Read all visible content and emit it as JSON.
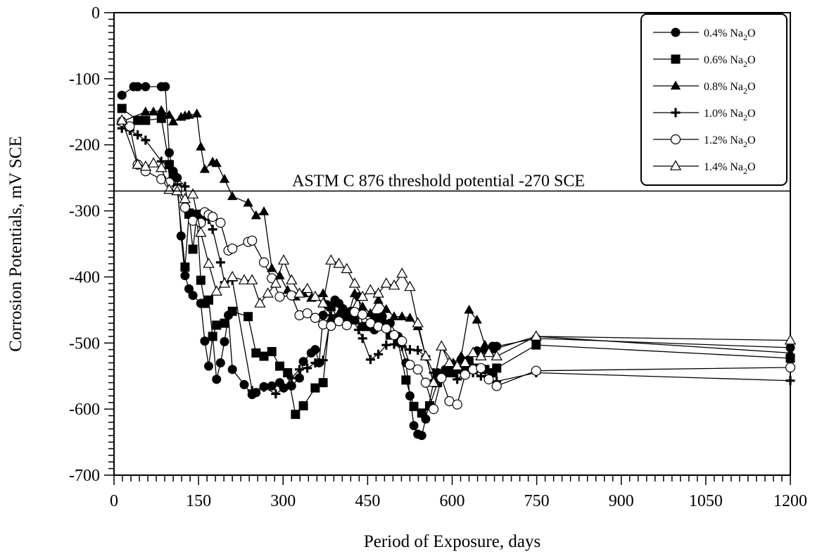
{
  "chart_data": {
    "type": "scatter",
    "title": "",
    "xlabel": "Period of Exposure, days",
    "ylabel": "Corrosion Potentials, mV SCE",
    "xlim": [
      0,
      1200
    ],
    "ylim": [
      -700,
      0
    ],
    "xticks": [
      0,
      150,
      300,
      450,
      600,
      750,
      900,
      1050,
      1200
    ],
    "yticks": [
      0,
      -100,
      -200,
      -300,
      -400,
      -500,
      -600,
      -700
    ],
    "grid": false,
    "legend_position": "top-right",
    "threshold": {
      "y": -270,
      "label": "ASTM C 876 threshold potential -270 SCE"
    },
    "series": [
      {
        "name": "0.4% Na2O",
        "label_main": "0.4% Na",
        "label_sub": "2",
        "label_end": "O",
        "marker": "circle-filled",
        "x": [
          14,
          35,
          42,
          56,
          84,
          91,
          98,
          105,
          112,
          119,
          126,
          133,
          140,
          154,
          161,
          168,
          175,
          182,
          189,
          196,
          203,
          210,
          231,
          245,
          252,
          266,
          280,
          294,
          301,
          315,
          329,
          336,
          350,
          357,
          364,
          371,
          378,
          392,
          399,
          406,
          420,
          434,
          441,
          455,
          462,
          476,
          490,
          504,
          518,
          525,
          532,
          539,
          546,
          553,
          567,
          574,
          588,
          602,
          616,
          630,
          644,
          658,
          672,
          679,
          749,
          1200
        ],
        "y": [
          -125,
          -112,
          -112,
          -112,
          -112,
          -112,
          -212,
          -240,
          -250,
          -338,
          -398,
          -418,
          -428,
          -440,
          -497,
          -535,
          -490,
          -555,
          -530,
          -498,
          -458,
          -540,
          -563,
          -578,
          -575,
          -566,
          -565,
          -560,
          -568,
          -565,
          -553,
          -528,
          -515,
          -510,
          -530,
          -458,
          -442,
          -435,
          -440,
          -448,
          -452,
          -430,
          -475,
          -470,
          -480,
          -460,
          -470,
          -490,
          -530,
          -580,
          -625,
          -638,
          -640,
          -615,
          -560,
          -545,
          -540,
          -540,
          -525,
          -525,
          -512,
          -510,
          -505,
          -505,
          -493,
          -507
        ]
      },
      {
        "name": "0.6% Na2O",
        "label_main": "0.6% Na",
        "label_sub": "2",
        "label_end": "O",
        "marker": "square-filled",
        "x": [
          14,
          42,
          56,
          84,
          98,
          105,
          112,
          126,
          133,
          140,
          147,
          154,
          161,
          168,
          175,
          182,
          196,
          210,
          238,
          252,
          266,
          280,
          294,
          308,
          322,
          336,
          357,
          371,
          385,
          399,
          413,
          427,
          448,
          462,
          476,
          490,
          504,
          518,
          532,
          546,
          560,
          574,
          588,
          602,
          616,
          630,
          644,
          658,
          672,
          679,
          749,
          1200
        ],
        "y": [
          -145,
          -163,
          -163,
          -160,
          -230,
          -248,
          -265,
          -385,
          -305,
          -358,
          -305,
          -405,
          -440,
          -435,
          -490,
          -473,
          -470,
          -452,
          -460,
          -515,
          -520,
          -513,
          -535,
          -545,
          -608,
          -595,
          -568,
          -560,
          -445,
          -465,
          -460,
          -465,
          -475,
          -462,
          -472,
          -488,
          -498,
          -556,
          -596,
          -606,
          -595,
          -560,
          -545,
          -545,
          -540,
          -535,
          -538,
          -540,
          -545,
          -538,
          -503,
          -523
        ]
      },
      {
        "name": "0.8% Na2O",
        "label_main": "0.8% Na",
        "label_sub": "2",
        "label_end": "O",
        "marker": "triangle-filled",
        "x": [
          14,
          56,
          70,
          84,
          98,
          105,
          119,
          126,
          133,
          147,
          154,
          161,
          175,
          182,
          196,
          210,
          238,
          252,
          266,
          280,
          294,
          308,
          322,
          336,
          350,
          371,
          385,
          399,
          413,
          427,
          441,
          455,
          469,
          483,
          497,
          511,
          525,
          539,
          553,
          567,
          581,
          602,
          616,
          630,
          644,
          658,
          672,
          749,
          1200
        ],
        "y": [
          -165,
          -150,
          -150,
          -148,
          -155,
          -165,
          -158,
          -156,
          -155,
          -153,
          -203,
          -237,
          -226,
          -228,
          -252,
          -278,
          -288,
          -307,
          -301,
          -387,
          -398,
          -420,
          -430,
          -425,
          -432,
          -425,
          -462,
          -455,
          -465,
          -425,
          -445,
          -455,
          -435,
          -449,
          -460,
          -460,
          -462,
          -475,
          -520,
          -560,
          -505,
          -530,
          -520,
          -450,
          -465,
          -503,
          -510,
          -490,
          -515
        ]
      },
      {
        "name": "1.0% Na2O",
        "label_main": "1.0% Na",
        "label_sub": "2",
        "label_end": "O",
        "marker": "plus",
        "x": [
          14,
          28,
          42,
          56,
          84,
          98,
          112,
          126,
          133,
          154,
          161,
          168,
          175,
          189,
          196,
          210,
          245,
          266,
          287,
          301,
          315,
          329,
          343,
          357,
          371,
          385,
          399,
          420,
          434,
          441,
          455,
          469,
          483,
          497,
          511,
          525,
          539,
          553,
          567,
          581,
          595,
          609,
          623,
          637,
          651,
          665,
          679,
          749,
          1200
        ],
        "y": [
          -175,
          -178,
          -185,
          -193,
          -225,
          -235,
          -250,
          -263,
          -298,
          -310,
          -310,
          -313,
          -328,
          -378,
          -408,
          -405,
          -572,
          -567,
          -577,
          -568,
          -553,
          -540,
          -538,
          -530,
          -526,
          -458,
          -465,
          -460,
          -480,
          -493,
          -525,
          -517,
          -503,
          -502,
          -505,
          -510,
          -511,
          -520,
          -545,
          -550,
          -540,
          -555,
          -545,
          -545,
          -550,
          -555,
          -558,
          -545,
          -557
        ]
      },
      {
        "name": "1.2% Na2O",
        "label_main": "1.2% Na",
        "label_sub": "2",
        "label_end": "O",
        "marker": "circle-open",
        "x": [
          14,
          28,
          42,
          56,
          84,
          98,
          112,
          126,
          140,
          154,
          161,
          168,
          175,
          189,
          203,
          210,
          238,
          245,
          266,
          280,
          294,
          315,
          329,
          343,
          357,
          371,
          385,
          399,
          413,
          427,
          441,
          455,
          469,
          483,
          497,
          511,
          525,
          539,
          553,
          567,
          581,
          595,
          609,
          623,
          637,
          651,
          665,
          679,
          749,
          1200
        ],
        "y": [
          -165,
          -172,
          -230,
          -240,
          -252,
          -257,
          -268,
          -295,
          -315,
          -318,
          -302,
          -306,
          -309,
          -318,
          -360,
          -357,
          -347,
          -345,
          -378,
          -402,
          -430,
          -428,
          -458,
          -455,
          -462,
          -472,
          -474,
          -467,
          -473,
          -453,
          -457,
          -470,
          -475,
          -478,
          -488,
          -497,
          -533,
          -540,
          -560,
          -600,
          -553,
          -588,
          -593,
          -548,
          -540,
          -538,
          -555,
          -565,
          -542,
          -537
        ]
      },
      {
        "name": "1.4% Na2O",
        "label_main": "1.4% Na",
        "label_sub": "2",
        "label_end": "O",
        "marker": "triangle-open",
        "x": [
          14,
          42,
          56,
          70,
          84,
          98,
          112,
          126,
          140,
          154,
          168,
          182,
          196,
          210,
          231,
          245,
          259,
          273,
          287,
          301,
          315,
          329,
          343,
          357,
          371,
          385,
          399,
          413,
          427,
          441,
          455,
          469,
          483,
          497,
          511,
          525,
          539,
          553,
          567,
          581,
          595,
          609,
          623,
          637,
          651,
          665,
          679,
          749,
          1200
        ],
        "y": [
          -163,
          -230,
          -233,
          -228,
          -235,
          -268,
          -270,
          -282,
          -275,
          -333,
          -380,
          -422,
          -410,
          -400,
          -405,
          -405,
          -440,
          -425,
          -410,
          -375,
          -405,
          -425,
          -418,
          -430,
          -440,
          -375,
          -380,
          -388,
          -410,
          -430,
          -420,
          -425,
          -410,
          -413,
          -395,
          -415,
          -470,
          -520,
          -560,
          -505,
          -530,
          -535,
          -530,
          -515,
          -520,
          -515,
          -520,
          -490,
          -496
        ]
      }
    ]
  }
}
